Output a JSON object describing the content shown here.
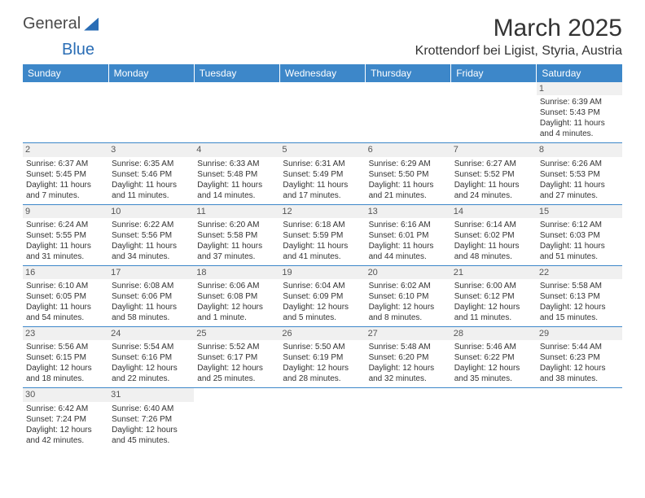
{
  "logo": {
    "part1": "General",
    "part2": "Blue"
  },
  "title": "March 2025",
  "location": "Krottendorf bei Ligist, Styria, Austria",
  "colors": {
    "header_bg": "#3d87c9",
    "header_text": "#ffffff",
    "daynum_bg": "#f0f0f0",
    "cell_border": "#3d87c9",
    "logo_blue": "#2a6db5"
  },
  "weekdays": [
    "Sunday",
    "Monday",
    "Tuesday",
    "Wednesday",
    "Thursday",
    "Friday",
    "Saturday"
  ],
  "weeks": [
    [
      null,
      null,
      null,
      null,
      null,
      null,
      {
        "day": "1",
        "sunrise": "Sunrise: 6:39 AM",
        "sunset": "Sunset: 5:43 PM",
        "daylight1": "Daylight: 11 hours",
        "daylight2": "and 4 minutes."
      }
    ],
    [
      {
        "day": "2",
        "sunrise": "Sunrise: 6:37 AM",
        "sunset": "Sunset: 5:45 PM",
        "daylight1": "Daylight: 11 hours",
        "daylight2": "and 7 minutes."
      },
      {
        "day": "3",
        "sunrise": "Sunrise: 6:35 AM",
        "sunset": "Sunset: 5:46 PM",
        "daylight1": "Daylight: 11 hours",
        "daylight2": "and 11 minutes."
      },
      {
        "day": "4",
        "sunrise": "Sunrise: 6:33 AM",
        "sunset": "Sunset: 5:48 PM",
        "daylight1": "Daylight: 11 hours",
        "daylight2": "and 14 minutes."
      },
      {
        "day": "5",
        "sunrise": "Sunrise: 6:31 AM",
        "sunset": "Sunset: 5:49 PM",
        "daylight1": "Daylight: 11 hours",
        "daylight2": "and 17 minutes."
      },
      {
        "day": "6",
        "sunrise": "Sunrise: 6:29 AM",
        "sunset": "Sunset: 5:50 PM",
        "daylight1": "Daylight: 11 hours",
        "daylight2": "and 21 minutes."
      },
      {
        "day": "7",
        "sunrise": "Sunrise: 6:27 AM",
        "sunset": "Sunset: 5:52 PM",
        "daylight1": "Daylight: 11 hours",
        "daylight2": "and 24 minutes."
      },
      {
        "day": "8",
        "sunrise": "Sunrise: 6:26 AM",
        "sunset": "Sunset: 5:53 PM",
        "daylight1": "Daylight: 11 hours",
        "daylight2": "and 27 minutes."
      }
    ],
    [
      {
        "day": "9",
        "sunrise": "Sunrise: 6:24 AM",
        "sunset": "Sunset: 5:55 PM",
        "daylight1": "Daylight: 11 hours",
        "daylight2": "and 31 minutes."
      },
      {
        "day": "10",
        "sunrise": "Sunrise: 6:22 AM",
        "sunset": "Sunset: 5:56 PM",
        "daylight1": "Daylight: 11 hours",
        "daylight2": "and 34 minutes."
      },
      {
        "day": "11",
        "sunrise": "Sunrise: 6:20 AM",
        "sunset": "Sunset: 5:58 PM",
        "daylight1": "Daylight: 11 hours",
        "daylight2": "and 37 minutes."
      },
      {
        "day": "12",
        "sunrise": "Sunrise: 6:18 AM",
        "sunset": "Sunset: 5:59 PM",
        "daylight1": "Daylight: 11 hours",
        "daylight2": "and 41 minutes."
      },
      {
        "day": "13",
        "sunrise": "Sunrise: 6:16 AM",
        "sunset": "Sunset: 6:01 PM",
        "daylight1": "Daylight: 11 hours",
        "daylight2": "and 44 minutes."
      },
      {
        "day": "14",
        "sunrise": "Sunrise: 6:14 AM",
        "sunset": "Sunset: 6:02 PM",
        "daylight1": "Daylight: 11 hours",
        "daylight2": "and 48 minutes."
      },
      {
        "day": "15",
        "sunrise": "Sunrise: 6:12 AM",
        "sunset": "Sunset: 6:03 PM",
        "daylight1": "Daylight: 11 hours",
        "daylight2": "and 51 minutes."
      }
    ],
    [
      {
        "day": "16",
        "sunrise": "Sunrise: 6:10 AM",
        "sunset": "Sunset: 6:05 PM",
        "daylight1": "Daylight: 11 hours",
        "daylight2": "and 54 minutes."
      },
      {
        "day": "17",
        "sunrise": "Sunrise: 6:08 AM",
        "sunset": "Sunset: 6:06 PM",
        "daylight1": "Daylight: 11 hours",
        "daylight2": "and 58 minutes."
      },
      {
        "day": "18",
        "sunrise": "Sunrise: 6:06 AM",
        "sunset": "Sunset: 6:08 PM",
        "daylight1": "Daylight: 12 hours",
        "daylight2": "and 1 minute."
      },
      {
        "day": "19",
        "sunrise": "Sunrise: 6:04 AM",
        "sunset": "Sunset: 6:09 PM",
        "daylight1": "Daylight: 12 hours",
        "daylight2": "and 5 minutes."
      },
      {
        "day": "20",
        "sunrise": "Sunrise: 6:02 AM",
        "sunset": "Sunset: 6:10 PM",
        "daylight1": "Daylight: 12 hours",
        "daylight2": "and 8 minutes."
      },
      {
        "day": "21",
        "sunrise": "Sunrise: 6:00 AM",
        "sunset": "Sunset: 6:12 PM",
        "daylight1": "Daylight: 12 hours",
        "daylight2": "and 11 minutes."
      },
      {
        "day": "22",
        "sunrise": "Sunrise: 5:58 AM",
        "sunset": "Sunset: 6:13 PM",
        "daylight1": "Daylight: 12 hours",
        "daylight2": "and 15 minutes."
      }
    ],
    [
      {
        "day": "23",
        "sunrise": "Sunrise: 5:56 AM",
        "sunset": "Sunset: 6:15 PM",
        "daylight1": "Daylight: 12 hours",
        "daylight2": "and 18 minutes."
      },
      {
        "day": "24",
        "sunrise": "Sunrise: 5:54 AM",
        "sunset": "Sunset: 6:16 PM",
        "daylight1": "Daylight: 12 hours",
        "daylight2": "and 22 minutes."
      },
      {
        "day": "25",
        "sunrise": "Sunrise: 5:52 AM",
        "sunset": "Sunset: 6:17 PM",
        "daylight1": "Daylight: 12 hours",
        "daylight2": "and 25 minutes."
      },
      {
        "day": "26",
        "sunrise": "Sunrise: 5:50 AM",
        "sunset": "Sunset: 6:19 PM",
        "daylight1": "Daylight: 12 hours",
        "daylight2": "and 28 minutes."
      },
      {
        "day": "27",
        "sunrise": "Sunrise: 5:48 AM",
        "sunset": "Sunset: 6:20 PM",
        "daylight1": "Daylight: 12 hours",
        "daylight2": "and 32 minutes."
      },
      {
        "day": "28",
        "sunrise": "Sunrise: 5:46 AM",
        "sunset": "Sunset: 6:22 PM",
        "daylight1": "Daylight: 12 hours",
        "daylight2": "and 35 minutes."
      },
      {
        "day": "29",
        "sunrise": "Sunrise: 5:44 AM",
        "sunset": "Sunset: 6:23 PM",
        "daylight1": "Daylight: 12 hours",
        "daylight2": "and 38 minutes."
      }
    ],
    [
      {
        "day": "30",
        "sunrise": "Sunrise: 6:42 AM",
        "sunset": "Sunset: 7:24 PM",
        "daylight1": "Daylight: 12 hours",
        "daylight2": "and 42 minutes."
      },
      {
        "day": "31",
        "sunrise": "Sunrise: 6:40 AM",
        "sunset": "Sunset: 7:26 PM",
        "daylight1": "Daylight: 12 hours",
        "daylight2": "and 45 minutes."
      },
      null,
      null,
      null,
      null,
      null
    ]
  ]
}
